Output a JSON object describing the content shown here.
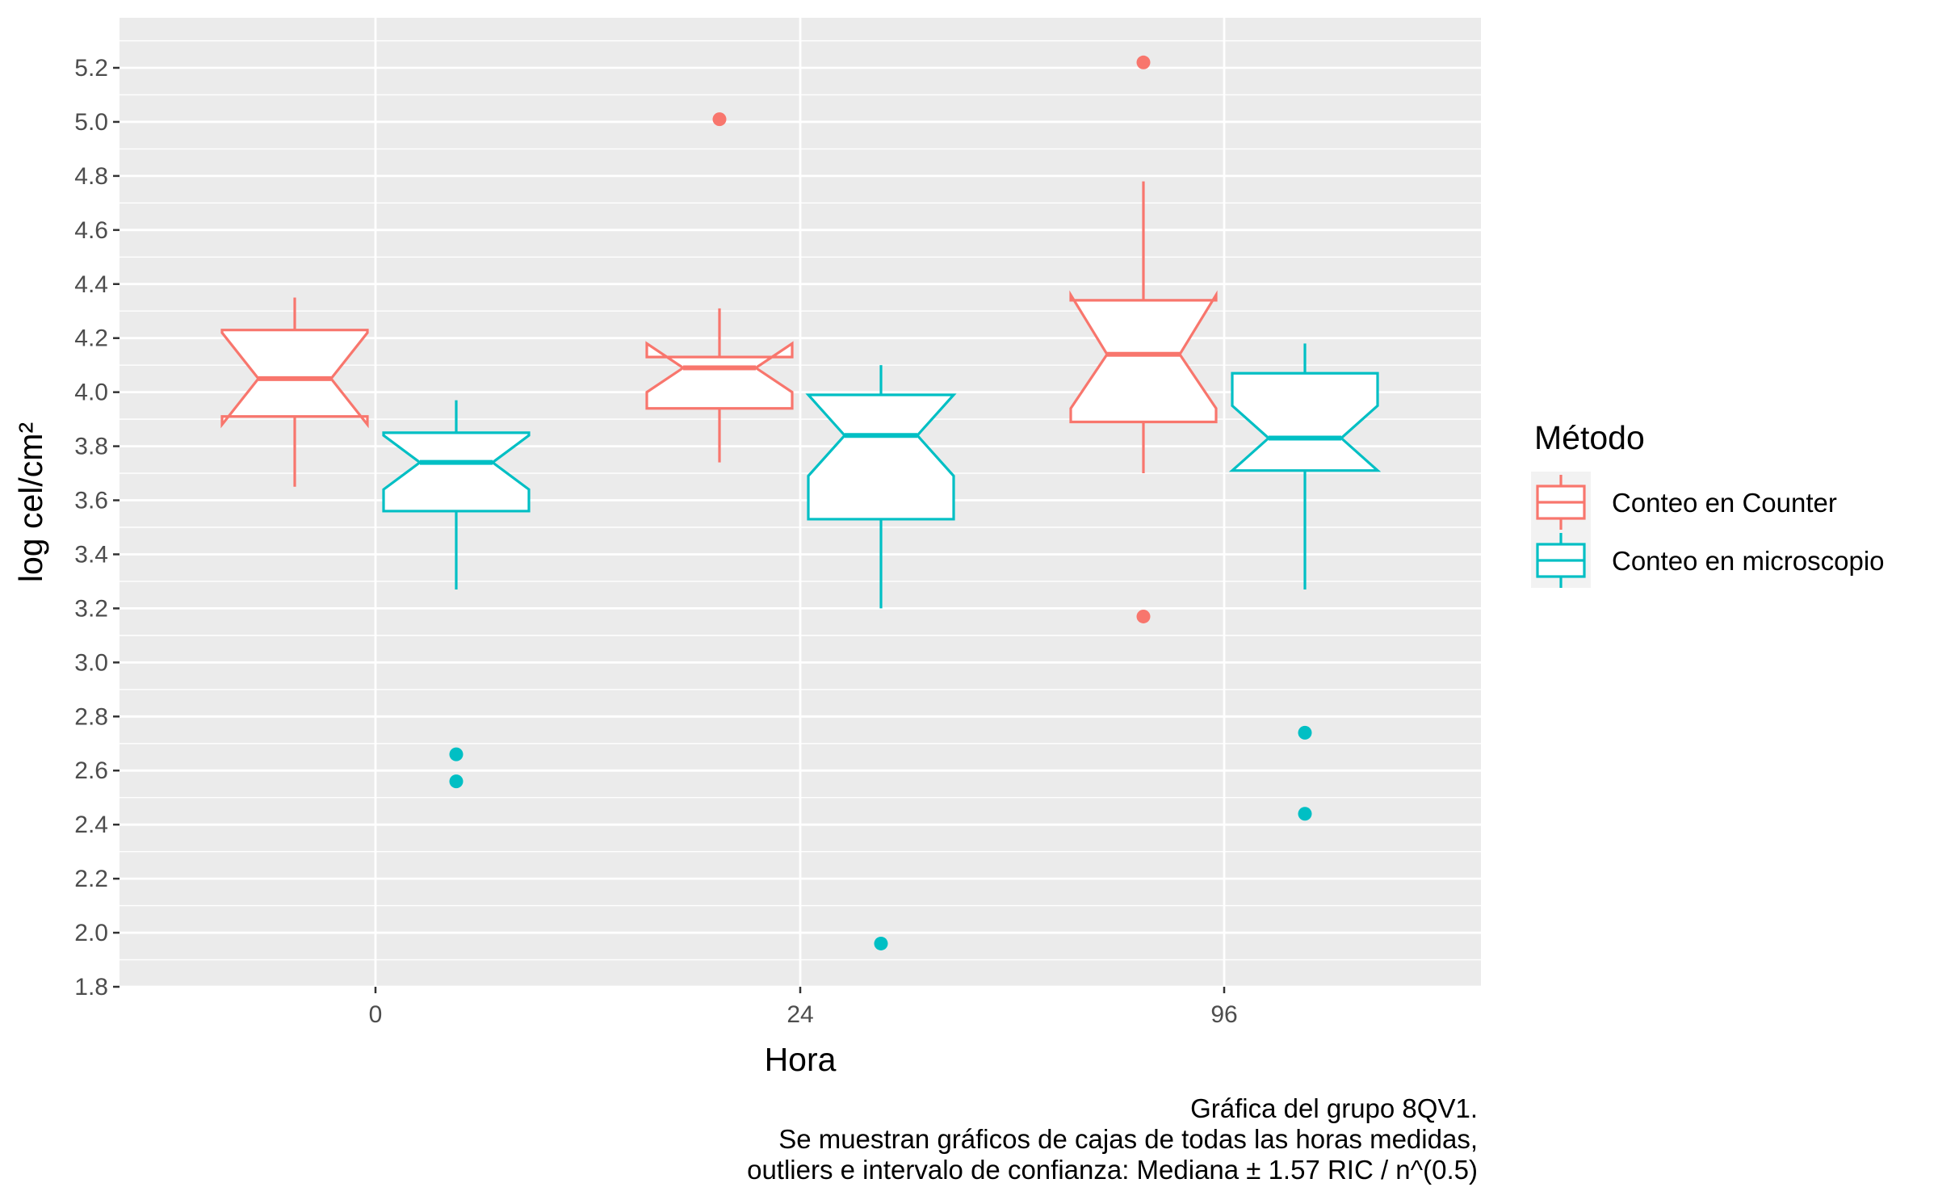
{
  "chart_data": {
    "type": "boxplot",
    "xlabel": "Hora",
    "ylabel": "log cel/cm²",
    "categories": [
      "0",
      "24",
      "96"
    ],
    "ylim": [
      1.8,
      5.35
    ],
    "yticks": [
      "1.8",
      "2.0",
      "2.2",
      "2.4",
      "2.6",
      "2.8",
      "3.0",
      "3.2",
      "3.4",
      "3.6",
      "3.8",
      "4.0",
      "4.2",
      "4.4",
      "4.6",
      "4.8",
      "5.0",
      "5.2"
    ],
    "grid": true,
    "notched": true,
    "legend": {
      "title": "Método",
      "position": "right",
      "entries": [
        "Conteo en Counter",
        "Conteo en microscopio"
      ]
    },
    "series": [
      {
        "name": "Conteo en Counter",
        "color": "#F8766D",
        "boxes": [
          {
            "category": "0",
            "lower_whisker": 3.65,
            "q1": 3.91,
            "median": 4.05,
            "q3": 4.23,
            "upper_whisker": 4.35,
            "notch_low": 3.88,
            "notch_high": 4.22,
            "outliers": []
          },
          {
            "category": "24",
            "lower_whisker": 3.74,
            "q1": 3.94,
            "median": 4.09,
            "q3": 4.13,
            "upper_whisker": 4.31,
            "notch_low": 4.0,
            "notch_high": 4.18,
            "outliers": [
              5.01
            ]
          },
          {
            "category": "96",
            "lower_whisker": 3.7,
            "q1": 3.89,
            "median": 4.14,
            "q3": 4.34,
            "upper_whisker": 4.78,
            "notch_low": 3.94,
            "notch_high": 4.36,
            "outliers": [
              5.22,
              3.17
            ]
          }
        ]
      },
      {
        "name": "Conteo en microscopio",
        "color": "#00BFC4",
        "boxes": [
          {
            "category": "0",
            "lower_whisker": 3.27,
            "q1": 3.56,
            "median": 3.74,
            "q3": 3.85,
            "upper_whisker": 3.97,
            "notch_low": 3.64,
            "notch_high": 3.84,
            "outliers": [
              2.66,
              2.56
            ]
          },
          {
            "category": "24",
            "lower_whisker": 3.2,
            "q1": 3.53,
            "median": 3.84,
            "q3": 3.99,
            "upper_whisker": 4.1,
            "notch_low": 3.69,
            "notch_high": 3.99,
            "outliers": [
              1.96
            ]
          },
          {
            "category": "96",
            "lower_whisker": 3.27,
            "q1": 3.71,
            "median": 3.83,
            "q3": 4.07,
            "upper_whisker": 4.18,
            "notch_low": 3.71,
            "notch_high": 3.95,
            "outliers": [
              2.74,
              2.44
            ]
          }
        ]
      }
    ],
    "caption": [
      "Gráfica del grupo 8QV1.",
      "Se muestran gráficos de cajas de todas las horas medidas,",
      "outliers e intervalo de confianza: Mediana ± 1.57 RIC / n^(0.5)"
    ]
  }
}
